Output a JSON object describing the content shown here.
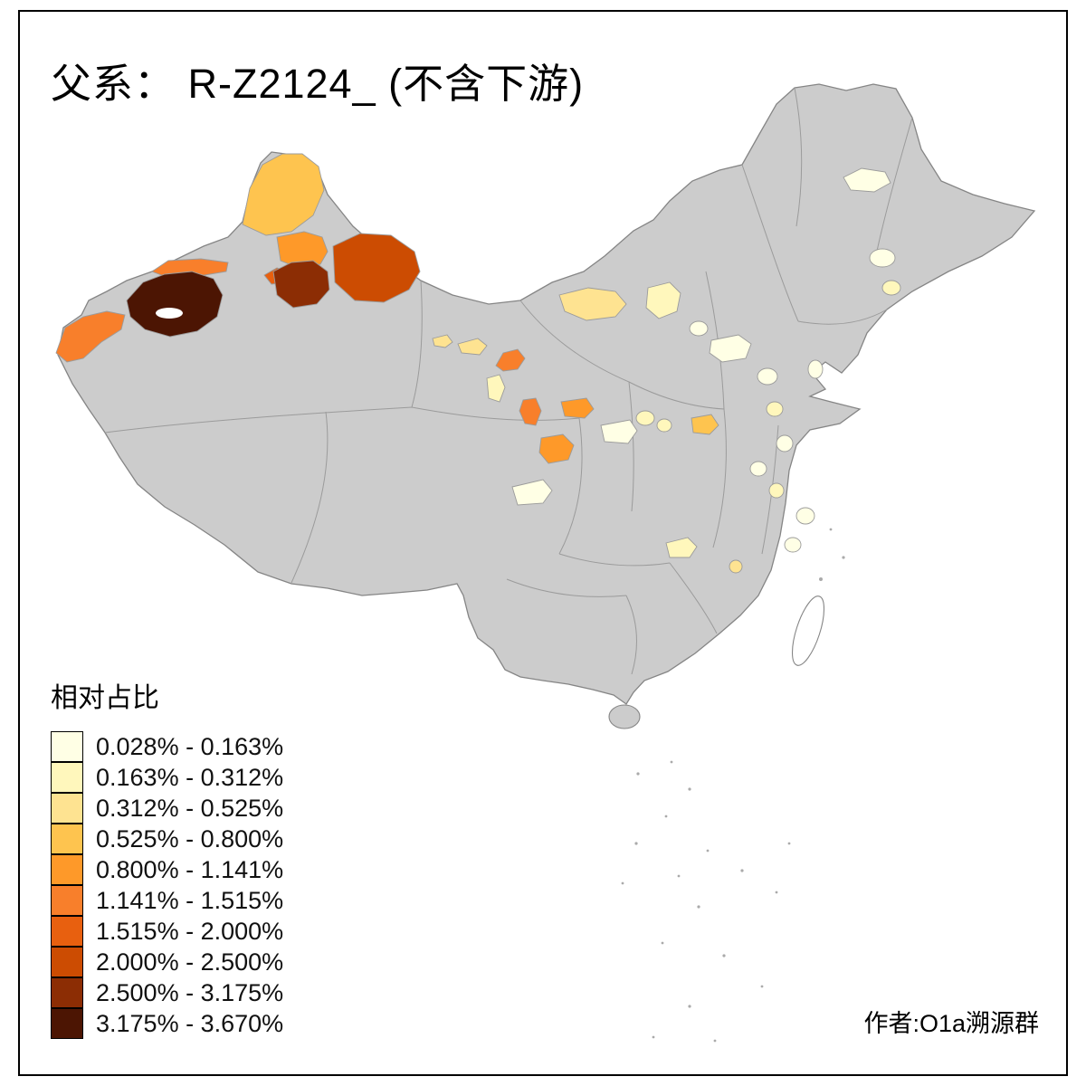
{
  "title": "父系：  R-Z2124_ (不含下游)",
  "author": "作者:O1a溯源群",
  "legend": {
    "title": "相对占比",
    "bins": [
      {
        "label": "0.028% - 0.163%",
        "color": "#FFFFE5"
      },
      {
        "label": "0.163% - 0.312%",
        "color": "#FFF7BC"
      },
      {
        "label": "0.312% - 0.525%",
        "color": "#FEE391"
      },
      {
        "label": "0.525% - 0.800%",
        "color": "#FEC44F"
      },
      {
        "label": "0.800% - 1.141%",
        "color": "#FE9929"
      },
      {
        "label": "1.141% - 1.515%",
        "color": "#F87F2B"
      },
      {
        "label": "1.515% - 2.000%",
        "color": "#E8600F"
      },
      {
        "label": "2.000% - 2.500%",
        "color": "#CC4C02"
      },
      {
        "label": "2.500% - 3.175%",
        "color": "#8C2D04"
      },
      {
        "label": "3.175% - 3.670%",
        "color": "#4C1503"
      }
    ]
  },
  "map": {
    "sea_color": "#FFFFFF",
    "land_color": "#CCCCCC",
    "boundary_color": "#9B9B9B",
    "outline_color": "#858585",
    "frame_color": "#000000"
  },
  "chart_data": {
    "type": "choropleth",
    "area": "China",
    "title": "父系：  R-Z2124_ (不含下游)",
    "legend_title": "相对占比",
    "bins": [
      "0.028% - 0.163%",
      "0.163% - 0.312%",
      "0.312% - 0.525%",
      "0.525% - 0.800%",
      "0.800% - 1.141%",
      "1.141% - 1.515%",
      "1.515% - 2.000%",
      "2.000% - 2.500%",
      "2.500% - 3.175%",
      "3.175% - 3.670%"
    ],
    "colors": [
      "#FFFFE5",
      "#FFF7BC",
      "#FEE391",
      "#FEC44F",
      "#FE9929",
      "#F87F2B",
      "#E8600F",
      "#CC4C02",
      "#8C2D04",
      "#4C1503"
    ],
    "no_data_color": "#CCCCCC",
    "author": "作者:O1a溯源群"
  }
}
